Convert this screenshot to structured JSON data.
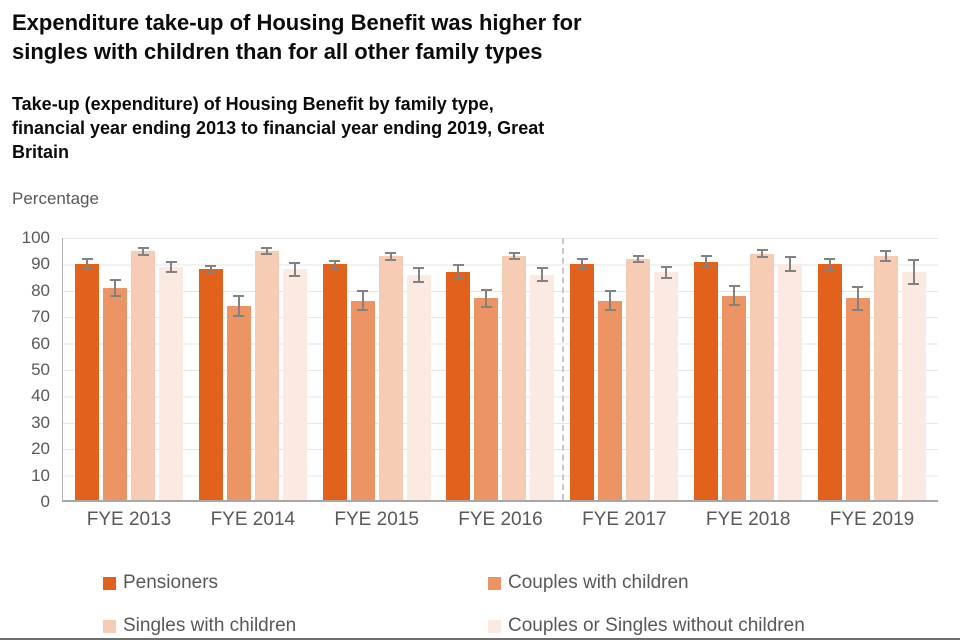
{
  "title_lines": [
    "Expenditure take-up of Housing Benefit was higher for",
    "singles with children than for all other family types"
  ],
  "subtitle_lines": [
    "Take-up (expenditure) of Housing Benefit by family type,",
    "financial year ending 2013 to financial year ending 2019, Great",
    "Britain"
  ],
  "y_axis_unit": "Percentage",
  "colors": {
    "pensioners": "#e2621c",
    "couples_with_children": "#ed9464",
    "singles_with_children": "#f6cdb4",
    "couples_or_singles_without_children": "#fbeae1",
    "gridline": "#e6e6e6",
    "error_bar": "#828282",
    "axis_text": "#595959"
  },
  "chart_data": {
    "type": "bar",
    "title": "Take-up (expenditure) of Housing Benefit by family type, financial year ending 2013 to financial year ending 2019, Great Britain",
    "xlabel": "",
    "ylabel": "Percentage",
    "ylim": [
      0,
      100
    ],
    "ytick_step": 10,
    "grid": "horizontal",
    "legend_position": "bottom",
    "error_bars": true,
    "separator_after_category": "FYE 2016",
    "categories": [
      "FYE 2013",
      "FYE 2014",
      "FYE 2015",
      "FYE 2016",
      "FYE 2017",
      "FYE 2018",
      "FYE 2019"
    ],
    "series": [
      {
        "name": "Pensioners",
        "color": "#e2621c",
        "values": [
          90,
          88,
          90,
          87,
          90,
          91,
          90
        ],
        "errors": [
          2.2,
          1.7,
          1.7,
          3.2,
          2.2,
          2.5,
          2.4
        ]
      },
      {
        "name": "Couples with children",
        "color": "#ed9464",
        "values": [
          81,
          74,
          76,
          77,
          76,
          78,
          77
        ],
        "errors": [
          3.5,
          4.2,
          4.0,
          3.6,
          4.0,
          4.0,
          4.7
        ]
      },
      {
        "name": "Singles with children",
        "color": "#f6cdb4",
        "values": [
          95,
          95,
          93,
          93,
          92,
          94,
          93
        ],
        "errors": [
          1.7,
          1.6,
          1.8,
          1.5,
          1.6,
          1.7,
          2.3
        ]
      },
      {
        "name": "Couples or Singles without children",
        "color": "#fbeae1",
        "values": [
          89,
          88,
          86,
          86,
          87,
          90,
          87
        ],
        "errors": [
          2.4,
          2.7,
          3.0,
          2.8,
          2.5,
          3.0,
          5.0
        ]
      }
    ]
  }
}
